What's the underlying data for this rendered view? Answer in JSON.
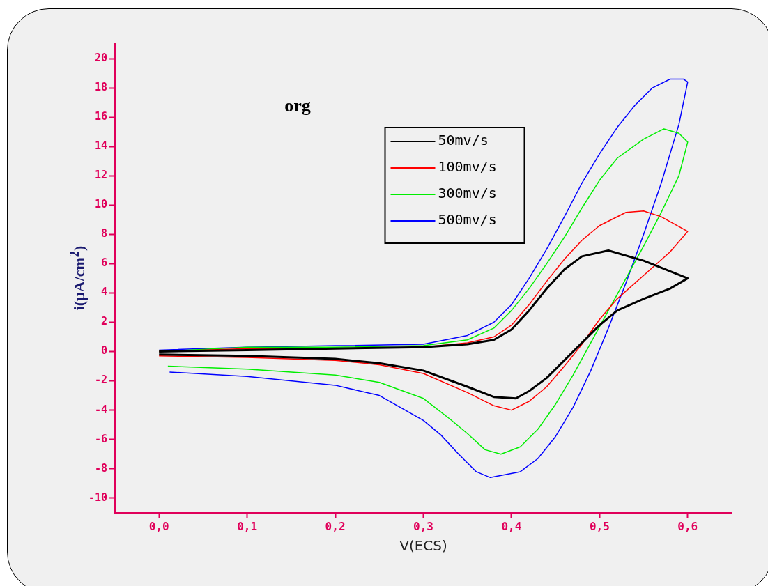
{
  "chart_data": {
    "type": "line",
    "xlabel": "V(ECS)",
    "ylabel": "i(µA/cm$^{2}$)",
    "annotations": [
      "org"
    ],
    "xlim": [
      -0.05,
      0.65
    ],
    "xticks": [
      {
        "value": 0,
        "label": "0,0"
      },
      {
        "value": 0.1,
        "label": "0,1"
      },
      {
        "value": 0.2,
        "label": "0,2"
      },
      {
        "value": 0.3,
        "label": "0,3"
      },
      {
        "value": 0.4,
        "label": "0,4"
      },
      {
        "value": 0.5,
        "label": "0,5"
      },
      {
        "value": 0.6,
        "label": "0,6"
      }
    ],
    "ylim": [
      -11,
      21
    ],
    "yticks": [
      -10,
      -8,
      -6,
      -4,
      -2,
      0,
      2,
      4,
      6,
      8,
      10,
      12,
      14,
      16,
      18,
      20
    ],
    "grid": false,
    "legend": "top",
    "marker": "none",
    "line_style": "solid",
    "series": [
      {
        "name": "50mv/s",
        "color": "#000000",
        "x": [
          0,
          0.1,
          0.2,
          0.3,
          0.35,
          0.38,
          0.4,
          0.42,
          0.44,
          0.46,
          0.48,
          0.51,
          0.55,
          0.6,
          0.58,
          0.55,
          0.52,
          0.5,
          0.48,
          0.46,
          0.44,
          0.42,
          0.405,
          0.38,
          0.35,
          0.3,
          0.25,
          0.2,
          0.1,
          0
        ],
        "values": [
          0,
          0.1,
          0.2,
          0.3,
          0.5,
          0.8,
          1.5,
          2.8,
          4.3,
          5.6,
          6.5,
          6.9,
          6.2,
          5,
          4.3,
          3.6,
          2.8,
          1.8,
          0.6,
          -0.6,
          -1.8,
          -2.7,
          -3.2,
          -3.1,
          -2.4,
          -1.3,
          -0.8,
          -0.5,
          -0.3,
          -0.2
        ]
      },
      {
        "name": "100mv/s",
        "color": "#ff0000",
        "x": [
          0,
          0.1,
          0.2,
          0.3,
          0.35,
          0.38,
          0.4,
          0.42,
          0.44,
          0.46,
          0.48,
          0.5,
          0.53,
          0.55,
          0.57,
          0.6,
          0.58,
          0.55,
          0.52,
          0.5,
          0.48,
          0.46,
          0.44,
          0.42,
          0.4,
          0.38,
          0.35,
          0.3,
          0.25,
          0.2,
          0.1,
          0
        ],
        "values": [
          0,
          0.2,
          0.2,
          0.3,
          0.6,
          1,
          1.8,
          3.2,
          4.8,
          6.3,
          7.6,
          8.6,
          9.5,
          9.6,
          9.2,
          8.2,
          6.8,
          5.2,
          3.6,
          2.2,
          0.5,
          -1,
          -2.4,
          -3.4,
          -4,
          -3.7,
          -2.8,
          -1.5,
          -0.9,
          -0.6,
          -0.4,
          -0.3
        ]
      },
      {
        "name": "300mv/s",
        "color": "#00ee00",
        "x": [
          0,
          0.1,
          0.2,
          0.3,
          0.35,
          0.38,
          0.4,
          0.42,
          0.44,
          0.46,
          0.48,
          0.5,
          0.52,
          0.55,
          0.573,
          0.59,
          0.6,
          0.59,
          0.57,
          0.55,
          0.53,
          0.51,
          0.49,
          0.47,
          0.45,
          0.43,
          0.41,
          0.388,
          0.37,
          0.35,
          0.33,
          0.3,
          0.25,
          0.2,
          0.1,
          0.01
        ],
        "values": [
          0,
          0.3,
          0.3,
          0.4,
          0.8,
          1.6,
          2.8,
          4.3,
          6,
          7.8,
          9.8,
          11.7,
          13.2,
          14.5,
          15.2,
          14.9,
          14.3,
          12,
          9.5,
          7.2,
          5,
          2.8,
          0.6,
          -1.6,
          -3.6,
          -5.3,
          -6.5,
          -7,
          -6.7,
          -5.6,
          -4.6,
          -3.2,
          -2.1,
          -1.6,
          -1.2,
          -1
        ]
      },
      {
        "name": "500mv/s",
        "color": "#0000ff",
        "x": [
          0,
          0.1,
          0.2,
          0.3,
          0.35,
          0.38,
          0.4,
          0.42,
          0.44,
          0.46,
          0.48,
          0.5,
          0.52,
          0.54,
          0.56,
          0.58,
          0.595,
          0.6,
          0.59,
          0.57,
          0.55,
          0.53,
          0.51,
          0.49,
          0.47,
          0.45,
          0.43,
          0.41,
          0.376,
          0.36,
          0.34,
          0.32,
          0.3,
          0.25,
          0.2,
          0.1,
          0.012
        ],
        "values": [
          0.1,
          0.3,
          0.4,
          0.5,
          1.1,
          2,
          3.2,
          5,
          7,
          9.2,
          11.5,
          13.5,
          15.3,
          16.8,
          18,
          18.6,
          18.6,
          18.4,
          15.5,
          11.5,
          8,
          4.7,
          1.6,
          -1.3,
          -3.8,
          -5.8,
          -7.3,
          -8.2,
          -8.6,
          -8.2,
          -7,
          -5.7,
          -4.7,
          -3,
          -2.3,
          -1.7,
          -1.4
        ]
      }
    ]
  }
}
